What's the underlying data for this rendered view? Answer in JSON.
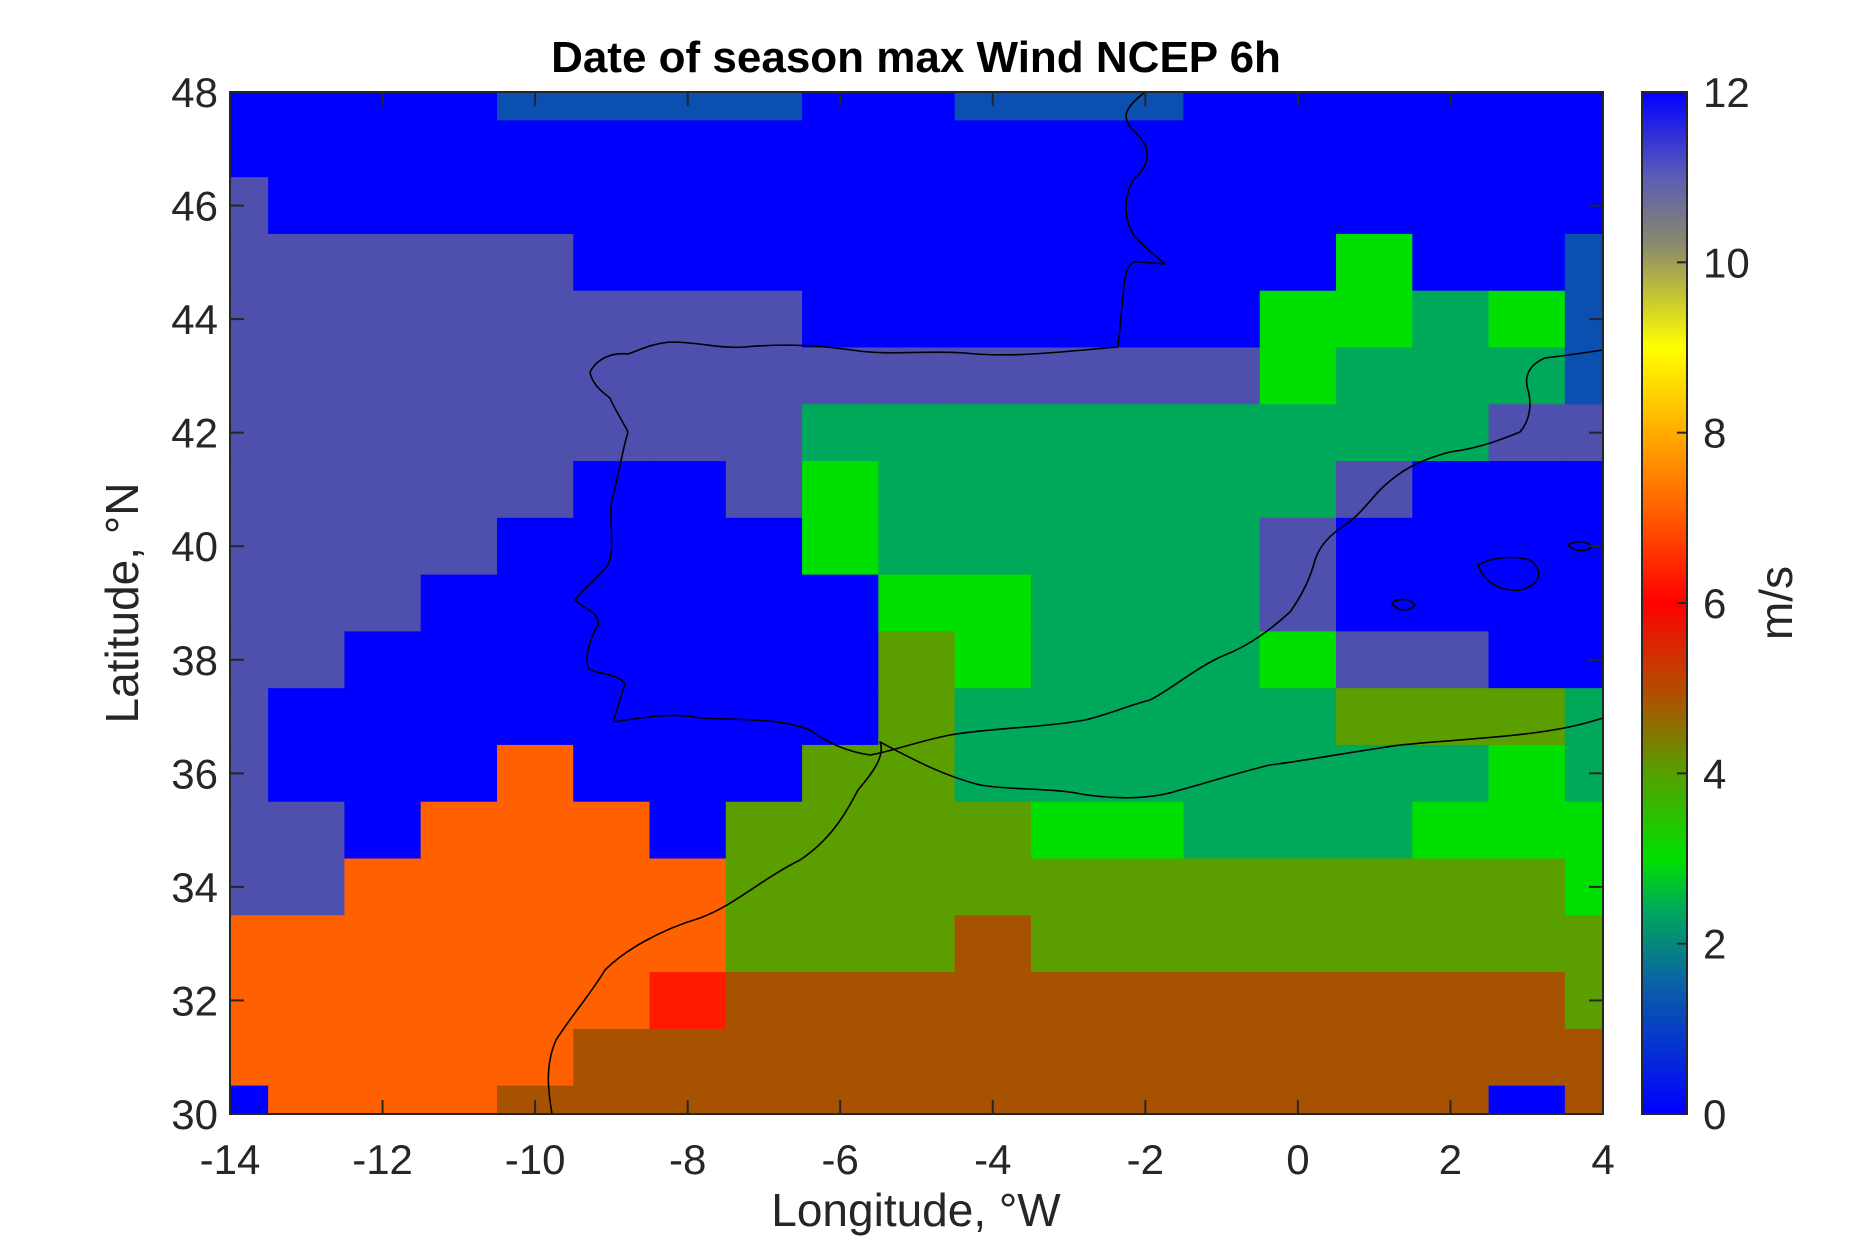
{
  "chart_data": {
    "type": "heatmap",
    "title": "Date of season max Wind NCEP 6h",
    "xlabel": "Longitude, °W",
    "ylabel": "Latitude, °N",
    "xlim": [
      -14,
      4
    ],
    "ylim": [
      30,
      48
    ],
    "x_ticks": [
      -14,
      -12,
      -10,
      -8,
      -6,
      -4,
      -2,
      0,
      2,
      4
    ],
    "y_ticks": [
      30,
      32,
      34,
      36,
      38,
      40,
      42,
      44,
      46,
      48
    ],
    "colorbar": {
      "label": "m/s",
      "range": [
        0,
        12
      ],
      "ticks": [
        0,
        2,
        4,
        6,
        8,
        10,
        12
      ]
    },
    "grid": {
      "lon": [
        -14,
        -13,
        -12,
        -11,
        -10,
        -9,
        -8,
        -7,
        -6,
        -5,
        -4,
        -3,
        -2,
        -1,
        0,
        1,
        2,
        3,
        4
      ],
      "lat": [
        48,
        47,
        46,
        45,
        44,
        43,
        42,
        41,
        40,
        39,
        38,
        37,
        36,
        35,
        34,
        33,
        32,
        31,
        30
      ],
      "values": [
        [
          12,
          12,
          12,
          12,
          1,
          1,
          1,
          1,
          12,
          12,
          1,
          1,
          1,
          12,
          12,
          12,
          12,
          12,
          12
        ],
        [
          12,
          12,
          12,
          12,
          12,
          12,
          12,
          12,
          12,
          12,
          12,
          12,
          12,
          12,
          12,
          12,
          12,
          12,
          12
        ],
        [
          11,
          12,
          12,
          12,
          12,
          12,
          12,
          12,
          12,
          12,
          12,
          12,
          12,
          12,
          12,
          12,
          12,
          12,
          12
        ],
        [
          11,
          11,
          11,
          11,
          11,
          12,
          12,
          12,
          12,
          12,
          12,
          12,
          12,
          12,
          12,
          3,
          12,
          12,
          1
        ],
        [
          11,
          11,
          11,
          11,
          11,
          11,
          11,
          11,
          12,
          12,
          12,
          12,
          12,
          12,
          3,
          3,
          2,
          3,
          1
        ],
        [
          11,
          11,
          11,
          11,
          11,
          11,
          11,
          11,
          11,
          11,
          11,
          11,
          11,
          11,
          3,
          2,
          2,
          2,
          1
        ],
        [
          11,
          11,
          11,
          11,
          11,
          11,
          11,
          11,
          2,
          2,
          2,
          2,
          2,
          2,
          2,
          2,
          2,
          11,
          11
        ],
        [
          11,
          11,
          11,
          11,
          11,
          12,
          12,
          11,
          3,
          2,
          2,
          2,
          2,
          2,
          2,
          11,
          12,
          12,
          12
        ],
        [
          11,
          11,
          11,
          11,
          12,
          12,
          12,
          12,
          3,
          2,
          2,
          2,
          2,
          2,
          11,
          12,
          12,
          12,
          12
        ],
        [
          11,
          11,
          11,
          12,
          12,
          12,
          12,
          12,
          12,
          3,
          3,
          2,
          2,
          2,
          11,
          12,
          12,
          12,
          12
        ],
        [
          11,
          11,
          12,
          12,
          12,
          12,
          12,
          12,
          12,
          4,
          3,
          2,
          2,
          2,
          3,
          11,
          11,
          12,
          12
        ],
        [
          11,
          12,
          12,
          12,
          12,
          12,
          12,
          12,
          12,
          4,
          2,
          2,
          2,
          2,
          2,
          4,
          4,
          4,
          2
        ],
        [
          11,
          12,
          12,
          12,
          7,
          12,
          12,
          12,
          4,
          4,
          2,
          2,
          2,
          2,
          2,
          2,
          2,
          3,
          2
        ],
        [
          11,
          11,
          12,
          7,
          7,
          7,
          12,
          4,
          4,
          4,
          4,
          3,
          3,
          2,
          2,
          2,
          3,
          3,
          3
        ],
        [
          11,
          11,
          7,
          7,
          7,
          7,
          7,
          4,
          4,
          4,
          4,
          4,
          4,
          4,
          4,
          4,
          4,
          4,
          3
        ],
        [
          7,
          7,
          7,
          7,
          7,
          7,
          7,
          4,
          4,
          4,
          5,
          4,
          4,
          4,
          4,
          4,
          4,
          4,
          4
        ],
        [
          7,
          7,
          7,
          7,
          7,
          7,
          6,
          5,
          5,
          5,
          5,
          5,
          5,
          5,
          5,
          5,
          5,
          5,
          4
        ],
        [
          7,
          7,
          7,
          7,
          7,
          5,
          5,
          5,
          5,
          5,
          5,
          5,
          5,
          5,
          5,
          5,
          5,
          5,
          5
        ],
        [
          12,
          7,
          7,
          7,
          5,
          5,
          5,
          5,
          5,
          5,
          5,
          5,
          5,
          5,
          5,
          5,
          5,
          12,
          5
        ]
      ]
    }
  }
}
